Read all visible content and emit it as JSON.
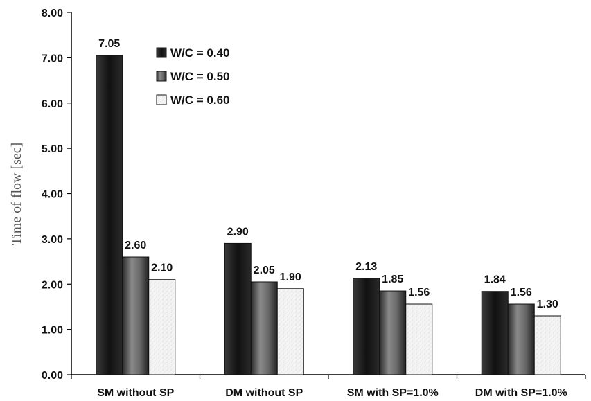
{
  "chart_data": {
    "type": "bar",
    "title": "",
    "xlabel": "",
    "ylabel": "Time of flow [sec]",
    "ylim": [
      0,
      8
    ],
    "yticks": [
      "0.00",
      "1.00",
      "2.00",
      "3.00",
      "4.00",
      "5.00",
      "6.00",
      "7.00",
      "8.00"
    ],
    "categories": [
      "SM without SP",
      "DM without SP",
      "SM with SP=1.0%",
      "DM with SP=1.0%"
    ],
    "series": [
      {
        "name": "W/C = 0.40",
        "values": [
          7.05,
          2.9,
          2.13,
          1.84
        ],
        "labels": [
          "7.05",
          "2.90",
          "2.13",
          "1.84"
        ],
        "color": "#1a1a1a"
      },
      {
        "name": "W/C = 0.50",
        "values": [
          2.6,
          2.05,
          1.85,
          1.56
        ],
        "labels": [
          "2.60",
          "2.05",
          "1.85",
          "1.56"
        ],
        "color": "#5a5a5a"
      },
      {
        "name": "W/C = 0.60",
        "values": [
          2.1,
          1.9,
          1.56,
          1.3
        ],
        "labels": [
          "2.10",
          "1.90",
          "1.56",
          "1.30"
        ],
        "color": "#f2f2f2"
      }
    ],
    "legend_position": "top-left-inside",
    "grid": false
  }
}
